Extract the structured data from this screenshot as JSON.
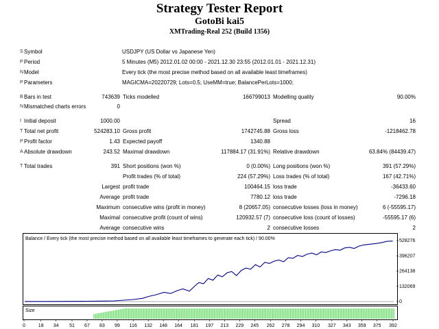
{
  "header": {
    "title": "Strategy Tester Report",
    "expert": "GotoBi kai5",
    "server": "XMTrading-Real 252 (Build 1356)"
  },
  "settings": {
    "symbol_label": "Symbol",
    "symbol_value": "USDJPY (US Dollar vs Japanese Yen)",
    "period_label": "Period",
    "period_value": "5 Minutes (M5) 2012.01.02 00:00 - 2021.12.30 23:55 (2012.01.01 - 2021.12.31)",
    "model_label": "Model",
    "model_value": "Every tick (the most precise method based on all available least timeframes)",
    "params_label": "Parameters",
    "params_value": "MAGICMA=20220729; Lots=0.5; UseMM=true; BalancePerLots=1000;"
  },
  "bars": {
    "bars_label": "Bars in test",
    "bars_value": "743639",
    "ticks_label": "Ticks modelled",
    "ticks_value": "166799013",
    "quality_label": "Modelling quality",
    "quality_value": "90.00%",
    "mismatch_label": "Mismatched charts errors",
    "mismatch_value": "0"
  },
  "stats": {
    "deposit_label": "Initial deposit",
    "deposit_value": "1000.00",
    "spread_label": "Spread",
    "spread_value": "16",
    "netprofit_label": "Total net profit",
    "netprofit_value": "524283.10",
    "grossprofit_label": "Gross profit",
    "grossprofit_value": "1742745.88",
    "grossloss_label": "Gross loss",
    "grossloss_value": "-1218462.78",
    "pf_label": "Profit factor",
    "pf_value": "1.43",
    "ep_label": "Expected payoff",
    "ep_value": "1340.88",
    "absdd_label": "Absolute drawdown",
    "absdd_value": "243.52",
    "maxdd_label": "Maximal drawdown",
    "maxdd_value": "117884.17 (31.91%)",
    "reldd_label": "Relative drawdown",
    "reldd_value": "63.84% (84439.47)"
  },
  "trades": {
    "total_label": "Total trades",
    "total_value": "391",
    "short_label": "Short positions (won %)",
    "short_value": "0 (0.00%)",
    "long_label": "Long positions (won %)",
    "long_value": "391 (57.29%)",
    "profit_trades_label": "Profit trades (% of total)",
    "profit_trades_value": "224 (57.29%)",
    "loss_trades_label": "Loss trades (% of total)",
    "loss_trades_value": "167 (42.71%)",
    "largest_label": "Largest",
    "largest_profit_label": "profit trade",
    "largest_profit_value": "100464.15",
    "largest_loss_label": "loss trade",
    "largest_loss_value": "-36433.60",
    "average_label": "Average",
    "average_profit_label": "profit trade",
    "average_profit_value": "7780.12",
    "average_loss_label": "loss trade",
    "average_loss_value": "-7296.18",
    "maximum_label": "Maximum",
    "max_wins_label": "consecutive wins (profit in money)",
    "max_wins_value": "8 (20657.05)",
    "max_losses_label": "consecutive losses (loss in money)",
    "max_losses_value": "6 (-55595.17)",
    "maximal_label": "Maximal",
    "maximal_profit_label": "consecutive profit (count of wins)",
    "maximal_profit_value": "120932.57 (7)",
    "maximal_loss_label": "consecutive loss (count of losses)",
    "maximal_loss_value": "-55595.17 (6)",
    "avg2_label": "Average",
    "avg_wins_label": "consecutive wins",
    "avg_wins_value": "2",
    "avg_losses_label": "consecutive losses",
    "avg_losses_value": "2"
  },
  "chart_data": {
    "type": "line",
    "title": "Balance / Every tick (the most precise method based on all available least timeframes to generate each tick) / 90.00%",
    "size_label": "Size",
    "y_ticks": [
      "528276",
      "396207",
      "264138",
      "132069",
      "0"
    ],
    "ylim": [
      0,
      528276
    ],
    "x_ticks": [
      "0",
      "18",
      "34",
      "51",
      "67",
      "83",
      "99",
      "116",
      "132",
      "148",
      "164",
      "181",
      "197",
      "213",
      "229",
      "245",
      "262",
      "278",
      "294",
      "310",
      "327",
      "343",
      "359",
      "375",
      "392"
    ],
    "xlim": [
      0,
      392
    ],
    "line_color": "#00008b",
    "size_bar_color": "#7ee07e",
    "series": [
      {
        "x": [
          0,
          20,
          40,
          60,
          80,
          95,
          105,
          115,
          125,
          132,
          140,
          148,
          155,
          162,
          168,
          175,
          180,
          185,
          190,
          195,
          200,
          205,
          210,
          215,
          220,
          225,
          230,
          235,
          240,
          245,
          250,
          255,
          260,
          265,
          270,
          275,
          280,
          285,
          290,
          295,
          300,
          305,
          310,
          315,
          320,
          325,
          330,
          335,
          340,
          345,
          350,
          355,
          360,
          365,
          370,
          375,
          380,
          385,
          391
        ],
        "y": [
          1000,
          1200,
          1500,
          2500,
          4000,
          6000,
          12000,
          18000,
          28000,
          45000,
          60000,
          80000,
          70000,
          95000,
          110000,
          90000,
          130000,
          165000,
          155000,
          200000,
          185000,
          230000,
          215000,
          250000,
          260000,
          225000,
          270000,
          290000,
          280000,
          320000,
          300000,
          340000,
          330000,
          350000,
          360000,
          345000,
          380000,
          375000,
          400000,
          390000,
          410000,
          420000,
          405000,
          430000,
          425000,
          440000,
          450000,
          445000,
          465000,
          470000,
          460000,
          480000,
          490000,
          495000,
          500000,
          505000,
          512000,
          522000,
          524283
        ]
      }
    ]
  }
}
